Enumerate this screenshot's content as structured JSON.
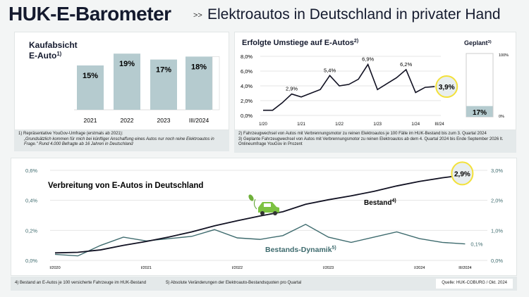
{
  "header": {
    "title": "HUK-E-Barometer",
    "separator": ">>",
    "subtitle": "Elektroautos in Deutschland in privater Hand"
  },
  "colors": {
    "bar": "#b5cbcf",
    "line": "#111122",
    "dynamik": "#3e6b6e",
    "highlight": "#f3e13a",
    "highlight_fill": "#e8eeef"
  },
  "chart_data": [
    {
      "type": "bar",
      "title": "Kaufabsicht E-Auto",
      "title_line1": "Kaufabsicht",
      "title_line2": "E-Auto",
      "footnote_mark": "1)",
      "categories": [
        "2021",
        "2022",
        "2023",
        "III/2024"
      ],
      "values": [
        15,
        19,
        17,
        18
      ],
      "value_labels": [
        "15%",
        "19%",
        "17%",
        "18%"
      ],
      "unit": "%"
    },
    {
      "type": "line",
      "title": "Erfolgte Umstiege auf E-Autos",
      "footnote_mark": "2)",
      "ylim": [
        0,
        8
      ],
      "yticks": [
        "0,0%",
        "2,0%",
        "4,0%",
        "6,0%",
        "8,0%"
      ],
      "xticks": [
        "1/20",
        "1/21",
        "1/22",
        "1/23",
        "1/24",
        "III/24"
      ],
      "x": [
        "I/20",
        "II/20",
        "III/20",
        "IV/20",
        "I/21",
        "II/21",
        "III/21",
        "IV/21",
        "I/22",
        "II/22",
        "III/22",
        "IV/22",
        "I/23",
        "II/23",
        "III/23",
        "IV/23",
        "I/24",
        "II/24",
        "III/24"
      ],
      "values": [
        0.7,
        0.7,
        1.7,
        2.9,
        2.5,
        3.0,
        3.5,
        5.4,
        4.0,
        4.2,
        4.9,
        6.9,
        3.5,
        4.3,
        5.1,
        6.2,
        3.1,
        3.8,
        3.9
      ],
      "annotations": [
        "2,9%",
        "5,4%",
        "6,9%",
        "6,2%"
      ],
      "highlight": "3,9%"
    },
    {
      "type": "bar",
      "title": "Geplant",
      "footnote_mark": "3)",
      "ylim": [
        0,
        100
      ],
      "yticks": [
        "0%",
        "100%"
      ],
      "values": [
        17
      ],
      "value_labels": [
        "17%"
      ]
    },
    {
      "type": "line",
      "title": "Verbreitung von E-Autos in Deutschland",
      "xticks": [
        "I/2020",
        "I/2021",
        "I/2022",
        "I/2023",
        "I/2024",
        "III/2024"
      ],
      "y_left_ticks": [
        "0,0%",
        "0,2%",
        "0,4%",
        "0,6%"
      ],
      "y_right_ticks": [
        "0,0%",
        "1,0%",
        "2,0%",
        "3,0%"
      ],
      "y_left_lim": [
        0,
        0.6
      ],
      "y_right_lim": [
        0,
        3
      ],
      "series": [
        {
          "name": "Bestand",
          "footnote_mark": "4)",
          "axis": "right",
          "values": [
            0.25,
            0.27,
            0.35,
            0.5,
            0.63,
            0.78,
            0.95,
            1.15,
            1.32,
            1.48,
            1.62,
            1.87,
            2.02,
            2.15,
            2.3,
            2.48,
            2.63,
            2.75,
            2.85
          ],
          "end_label": "2,9%"
        },
        {
          "name": "Bestands-Dynamik",
          "footnote_mark": "5)",
          "axis": "left",
          "values": [
            0.04,
            0.03,
            0.1,
            0.155,
            0.13,
            0.145,
            0.16,
            0.205,
            0.15,
            0.14,
            0.165,
            0.24,
            0.155,
            0.12,
            0.155,
            0.19,
            0.145,
            0.12,
            0.11
          ],
          "end_label": "0,1%"
        }
      ]
    }
  ],
  "footnotes": {
    "n1_a": "1)  Repräsentative YouGov-Umfrage (erstmals ab 2021):",
    "n1_b": "„Grundsätzlich kommen für mich bei künftiger Anschaffung eines Autos nur noch reine Elektroautos in Frage.\" Rund 4.000 Befragte ab 16 Jahren in Deutschland",
    "n2": "2)  Fahrzeugwechsel von Autos mit Verbrennungsmotor zu reinen Elektroautos je 100 Fälle im HUK-Bestand bis zum 3. Quartal 2024",
    "n3": "3)  Geplante Fahrzeugwechsel von Autos mit Verbrennungsmotor zu reinen Elektroautos ab dem 4. Quartal 2024 bis Ende September 2026 lt. Onlineumfrage YouGov in Prozent",
    "n4": "4) Bestand an E-Autos je 100 versicherte Fahrzeuge im HUK-Bestand",
    "n5": "5) Absolute Veränderungen der Elektroauto-Bestandsquoten pro Quartal",
    "source": "Quelle: HUK-COBURG / Okt. 2024"
  }
}
